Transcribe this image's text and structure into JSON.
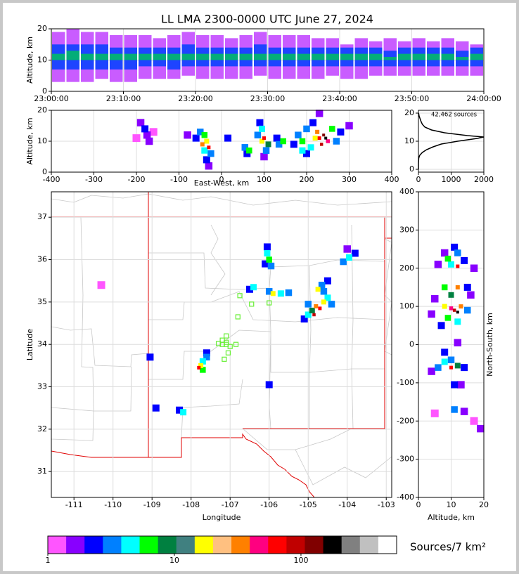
{
  "chart_data": [
    {
      "type": "column",
      "title": "LL LMA 2300-0000 UTC June 27, 2024",
      "ylabel": "Altitude, km",
      "xlim": [
        0,
        60
      ],
      "xticks": [
        {
          "value": 0,
          "label": "23:00:00"
        },
        {
          "value": 10,
          "label": "23:10:00"
        },
        {
          "value": 20,
          "label": "23:20:00"
        },
        {
          "value": 30,
          "label": "23:30:00"
        },
        {
          "value": 40,
          "label": "23:40:00"
        },
        {
          "value": 50,
          "label": "23:50:00"
        },
        {
          "value": 60,
          "label": "24:00:00"
        }
      ],
      "ylim": [
        0,
        20
      ],
      "yticks": [
        0,
        10,
        20
      ],
      "grid": true,
      "x": [
        0,
        2,
        4,
        6,
        8,
        10,
        12,
        14,
        16,
        18,
        20,
        22,
        24,
        26,
        28,
        30,
        32,
        34,
        36,
        38,
        40,
        42,
        44,
        46,
        48,
        50,
        52,
        54,
        56,
        58
      ],
      "layers": [
        {
          "color": "#c040ff",
          "low": [
            3,
            3,
            3,
            4,
            3,
            3,
            4,
            4,
            4,
            5,
            4,
            4,
            4,
            4,
            5,
            4,
            4,
            4,
            4,
            5,
            4,
            4,
            5,
            5,
            5,
            5,
            5,
            5,
            5,
            5
          ],
          "high": [
            19,
            20,
            19,
            19,
            18,
            18,
            18,
            17,
            18,
            19,
            18,
            18,
            17,
            18,
            19,
            18,
            18,
            18,
            17,
            17,
            15,
            17,
            16,
            17,
            16,
            17,
            16,
            17,
            16,
            15
          ]
        },
        {
          "color": "#0040ff",
          "low": [
            7,
            7,
            7,
            7,
            7,
            7,
            8,
            8,
            7,
            8,
            8,
            8,
            8,
            8,
            8,
            8,
            8,
            8,
            8,
            8,
            8,
            8,
            8,
            8,
            8,
            8,
            8,
            8,
            8,
            8
          ],
          "high": [
            15,
            15,
            15,
            15,
            14,
            14,
            14,
            14,
            14,
            15,
            14,
            14,
            14,
            14,
            15,
            14,
            14,
            14,
            14,
            14,
            14,
            14,
            14,
            13,
            14,
            14,
            14,
            14,
            13,
            14
          ]
        },
        {
          "color": "#00c060",
          "low": [
            10,
            10,
            10,
            10,
            10,
            10,
            10,
            10,
            10,
            10,
            10,
            10,
            10,
            10,
            10,
            10,
            10,
            10,
            10,
            10,
            10,
            10,
            10,
            10,
            10,
            10,
            10,
            10,
            10,
            10
          ],
          "high": [
            12,
            13,
            12,
            12,
            12,
            12,
            12,
            12,
            12,
            12,
            12,
            12,
            12,
            12,
            12,
            12,
            12,
            12,
            12,
            12,
            12,
            12,
            12,
            11,
            12,
            12,
            12,
            12,
            11,
            12
          ]
        }
      ]
    },
    {
      "type": "density",
      "xlabel": "East-West, km",
      "ylabel": "Altitude, km",
      "xlim": [
        -400,
        400
      ],
      "xticks": [
        -400,
        -300,
        -200,
        -100,
        0,
        100,
        200,
        300,
        400
      ],
      "ylim": [
        0,
        20
      ],
      "yticks": [
        0,
        10,
        20
      ],
      "grid": true,
      "points": [
        [
          -190,
          16,
          1
        ],
        [
          -180,
          14,
          2
        ],
        [
          -175,
          12,
          1
        ],
        [
          -200,
          11,
          0
        ],
        [
          -160,
          13,
          0
        ],
        [
          -170,
          10,
          1
        ],
        [
          -80,
          12,
          1
        ],
        [
          -60,
          11,
          2
        ],
        [
          -50,
          13,
          3
        ],
        [
          -40,
          12,
          5
        ],
        [
          -35,
          10,
          8
        ],
        [
          -30,
          8,
          12
        ],
        [
          -40,
          7,
          4
        ],
        [
          -25,
          6,
          3
        ],
        [
          -45,
          9,
          10
        ],
        [
          -30,
          2,
          1
        ],
        [
          -35,
          4,
          2
        ],
        [
          15,
          11,
          2
        ],
        [
          55,
          8,
          3
        ],
        [
          65,
          7,
          5
        ],
        [
          60,
          6,
          2
        ],
        [
          85,
          12,
          3
        ],
        [
          95,
          10,
          8
        ],
        [
          100,
          11,
          12
        ],
        [
          95,
          14,
          4
        ],
        [
          90,
          16,
          2
        ],
        [
          105,
          7,
          3
        ],
        [
          100,
          5,
          1
        ],
        [
          110,
          9,
          6
        ],
        [
          135,
          9,
          3
        ],
        [
          145,
          10,
          5
        ],
        [
          130,
          11,
          2
        ],
        [
          170,
          9,
          2
        ],
        [
          180,
          12,
          3
        ],
        [
          190,
          10,
          5
        ],
        [
          200,
          14,
          3
        ],
        [
          210,
          8,
          4
        ],
        [
          215,
          16,
          2
        ],
        [
          220,
          11,
          8
        ],
        [
          225,
          13,
          10
        ],
        [
          230,
          11,
          12
        ],
        [
          235,
          9,
          13
        ],
        [
          240,
          12,
          14
        ],
        [
          245,
          11,
          15
        ],
        [
          250,
          10,
          11
        ],
        [
          260,
          14,
          5
        ],
        [
          270,
          10,
          3
        ],
        [
          280,
          13,
          2
        ],
        [
          300,
          15,
          1
        ],
        [
          230,
          19,
          1
        ],
        [
          190,
          7,
          4
        ],
        [
          200,
          6,
          2
        ]
      ]
    },
    {
      "type": "line",
      "annotation": "42,462 sources",
      "color": "#000000",
      "xlim": [
        0,
        2000
      ],
      "xticks": [
        0,
        1000,
        2000
      ],
      "ylim": [
        -1,
        21
      ],
      "yticks": [
        0,
        10,
        20
      ],
      "grid": true,
      "x": [
        0,
        0,
        10,
        40,
        120,
        250,
        450,
        700,
        1200,
        1800,
        2000,
        1500,
        800,
        400,
        200,
        120,
        80,
        50,
        20,
        5
      ],
      "y": [
        0,
        2,
        4,
        5,
        6,
        7,
        8,
        9,
        10,
        11,
        11.5,
        12,
        13,
        14,
        15,
        16,
        17,
        18,
        19,
        20
      ]
    },
    {
      "type": "map",
      "xlabel": "Longitude",
      "ylabel": "Latitude",
      "xlim": [
        -111.58,
        -102.86
      ],
      "xticks": [
        -111,
        -110,
        -109,
        -108,
        -107,
        -106,
        -105,
        -104,
        -103
      ],
      "ylim": [
        30.39,
        37.6
      ],
      "yticks": [
        31,
        32,
        33,
        34,
        35,
        36,
        37
      ],
      "grid": true,
      "points": [
        [
          -107.6,
          33.8,
          2
        ],
        [
          -107.7,
          33.6,
          4
        ],
        [
          -107.75,
          33.5,
          8
        ],
        [
          -107.8,
          33.45,
          12
        ],
        [
          -107.7,
          33.4,
          5
        ],
        [
          -107.6,
          33.7,
          3
        ],
        [
          -106.05,
          36.3,
          2
        ],
        [
          -106.05,
          36.15,
          4
        ],
        [
          -106.0,
          36.0,
          5
        ],
        [
          -105.95,
          35.85,
          3
        ],
        [
          -106.1,
          35.9,
          2
        ],
        [
          -106.4,
          35.35,
          4
        ],
        [
          -106.5,
          35.3,
          2
        ],
        [
          -106.0,
          35.25,
          3
        ],
        [
          -105.9,
          35.2,
          8
        ],
        [
          -105.7,
          35.2,
          4
        ],
        [
          -105.5,
          35.22,
          3
        ],
        [
          -105.1,
          34.6,
          2
        ],
        [
          -105.0,
          34.7,
          4
        ],
        [
          -104.9,
          34.8,
          6
        ],
        [
          -104.8,
          34.9,
          10
        ],
        [
          -104.7,
          34.85,
          12
        ],
        [
          -104.85,
          34.7,
          13
        ],
        [
          -104.6,
          35.0,
          8
        ],
        [
          -104.5,
          35.1,
          4
        ],
        [
          -104.6,
          35.25,
          3
        ],
        [
          -104.75,
          35.3,
          8
        ],
        [
          -104.65,
          35.4,
          3
        ],
        [
          -104.5,
          35.5,
          2
        ],
        [
          -105.0,
          34.95,
          3
        ],
        [
          -104.4,
          34.95,
          3
        ],
        [
          -104.1,
          35.95,
          3
        ],
        [
          -103.95,
          36.05,
          4
        ],
        [
          -103.8,
          36.15,
          2
        ],
        [
          -108.3,
          32.45,
          2
        ],
        [
          -108.2,
          32.4,
          4
        ],
        [
          -108.9,
          32.5,
          2
        ],
        [
          -109.05,
          33.7,
          2
        ],
        [
          -106.0,
          33.05,
          2
        ],
        [
          -104.0,
          36.25,
          1
        ],
        [
          -110.3,
          35.4,
          0
        ]
      ],
      "stations": {
        "color": "#66ee33",
        "lon": [
          -106.75,
          -106.45,
          -106.0,
          -106.8,
          -107.2,
          -107.1,
          -107.0,
          -107.1,
          -107.1,
          -106.85,
          -107.05,
          -107.15,
          -107.3,
          -107.2
        ],
        "lat": [
          35.15,
          34.95,
          34.98,
          34.65,
          34.0,
          34.0,
          33.95,
          34.2,
          34.05,
          34.0,
          33.8,
          33.65,
          34.02,
          34.1
        ]
      }
    },
    {
      "type": "density",
      "xlabel": "Altitude, km",
      "ylabel": "North-South, km",
      "xlim": [
        0,
        20
      ],
      "xticks": [
        0,
        10,
        20
      ],
      "ylim": [
        -400,
        400
      ],
      "yticks": [
        -400,
        -300,
        -200,
        -100,
        0,
        100,
        200,
        300,
        400
      ],
      "grid": true,
      "points": [
        [
          8,
          240,
          1
        ],
        [
          12,
          240,
          3
        ],
        [
          10,
          210,
          4
        ],
        [
          12,
          205,
          12
        ],
        [
          14,
          220,
          2
        ],
        [
          9,
          225,
          5
        ],
        [
          11,
          255,
          2
        ],
        [
          6,
          210,
          1
        ],
        [
          17,
          200,
          1
        ],
        [
          5,
          120,
          1
        ],
        [
          15,
          150,
          2
        ],
        [
          8,
          150,
          5
        ],
        [
          12,
          150,
          10
        ],
        [
          10,
          130,
          6
        ],
        [
          8,
          100,
          8
        ],
        [
          10,
          95,
          11
        ],
        [
          11,
          90,
          13
        ],
        [
          12,
          85,
          15
        ],
        [
          13,
          100,
          10
        ],
        [
          9,
          70,
          5
        ],
        [
          12,
          60,
          4
        ],
        [
          15,
          90,
          3
        ],
        [
          7,
          50,
          2
        ],
        [
          16,
          130,
          1
        ],
        [
          4,
          80,
          1
        ],
        [
          8,
          -20,
          2
        ],
        [
          10,
          -40,
          3
        ],
        [
          6,
          -60,
          3
        ],
        [
          10,
          -60,
          12
        ],
        [
          12,
          -55,
          6
        ],
        [
          14,
          -60,
          2
        ],
        [
          4,
          -70,
          1
        ],
        [
          8,
          -45,
          4
        ],
        [
          12,
          5,
          1
        ],
        [
          11,
          -105,
          2
        ],
        [
          13,
          -105,
          1
        ],
        [
          11,
          -170,
          3
        ],
        [
          14,
          -175,
          1
        ],
        [
          17,
          -200,
          0
        ],
        [
          19,
          -220,
          1
        ],
        [
          5,
          -180,
          0
        ]
      ]
    },
    {
      "type": "colorbar",
      "label": "Sources/7 km²",
      "log": true,
      "lim": [
        1,
        570
      ],
      "ticks": [
        1,
        10,
        100
      ],
      "colors": [
        "#ff55ff",
        "#8800ff",
        "#0000ff",
        "#0080ff",
        "#00ffff",
        "#00ff00",
        "#008040",
        "#408080",
        "#ffff00",
        "#ffc080",
        "#ff8000",
        "#ff0080",
        "#ff0000",
        "#c00000",
        "#800000",
        "#000000",
        "#808080",
        "#c0c0c0",
        "#ffffff"
      ]
    }
  ]
}
